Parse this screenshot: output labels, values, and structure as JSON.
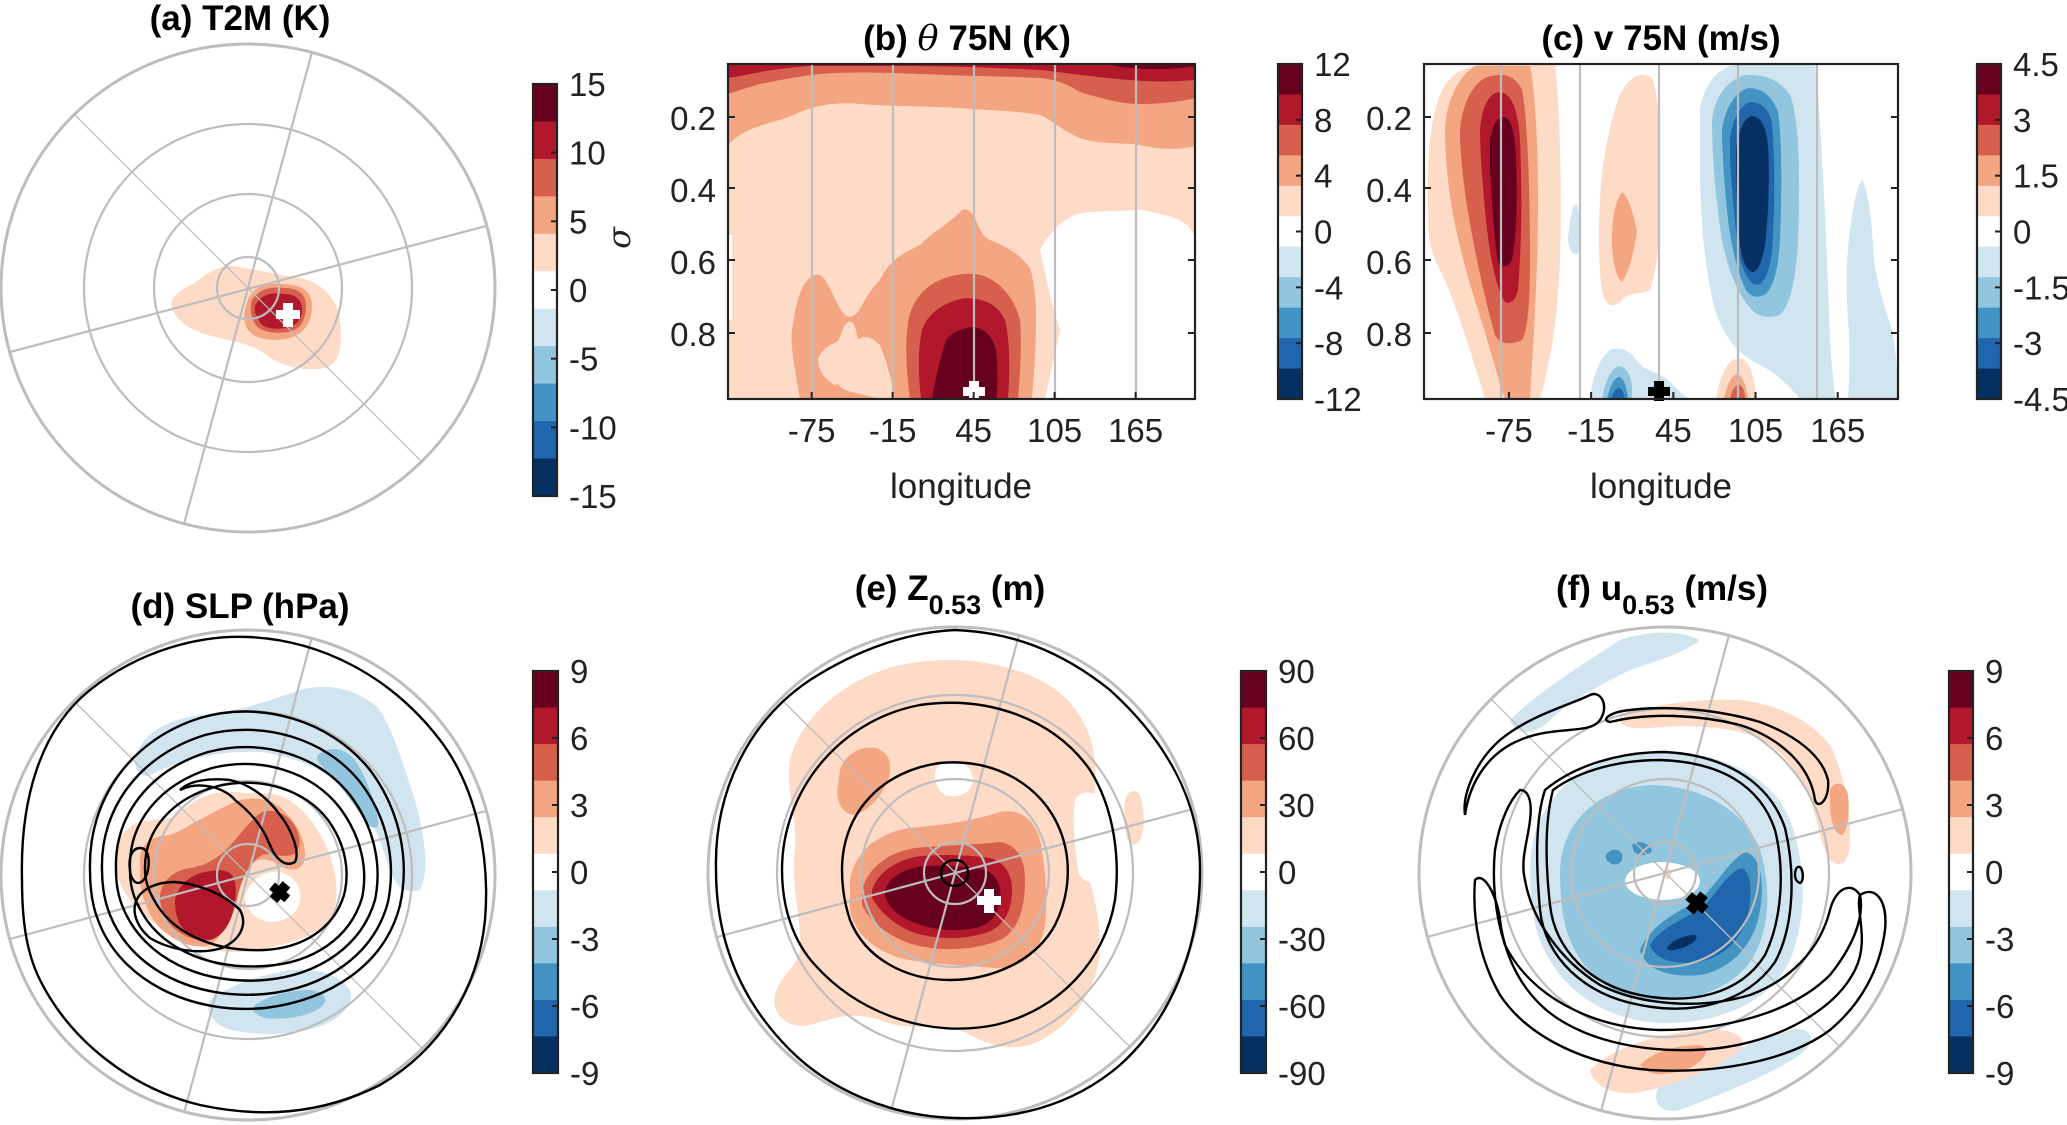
{
  "figure": {
    "colors": {
      "levels": [
        "#053061",
        "#2166ac",
        "#4393c3",
        "#92c5de",
        "#d1e5f0",
        "#ffffff",
        "#fddbc7",
        "#f4a582",
        "#d6604d",
        "#b2182b",
        "#67001f"
      ],
      "grid": "#bdbdbd",
      "contour": "#000000",
      "marker_white": "#ffffff",
      "marker_black": "#000000"
    }
  },
  "chart_data": [
    {
      "id": "a",
      "type": "heatmap",
      "projection": "polar-stereographic",
      "title": "(a) T2M (K)",
      "colorbar": {
        "min": -15,
        "max": 15,
        "levels": 11,
        "ticks": [
          "15",
          "10",
          "5",
          "0",
          "-5",
          "-10",
          "-15"
        ]
      },
      "marker": {
        "symbol": "plus",
        "color": "white",
        "position": "east-southeast of pole"
      },
      "features": [
        {
          "level": 1,
          "desc": "warm anomaly patch centred just SE of pole",
          "extent_r": 0.38
        },
        {
          "level": 2,
          "extent_r": 0.14
        },
        {
          "level": 3,
          "extent_r": 0.12
        },
        {
          "level": 4,
          "extent_r": 0.1
        }
      ],
      "contours": false
    },
    {
      "id": "b",
      "type": "heatmap",
      "title_prefix": "(b) ",
      "title_symbol": "θ",
      "title_suffix": " 75N (K)",
      "xlabel": "longitude",
      "ylabel": "σ",
      "xticks": [
        -75,
        -15,
        45,
        105,
        165
      ],
      "yticks": [
        0.2,
        0.4,
        0.6,
        0.8
      ],
      "xlim": [
        -137,
        209
      ],
      "ylim": [
        0.05,
        0.98
      ],
      "y_reversed": true,
      "grid": "vertical",
      "colorbar": {
        "min": -12,
        "max": 12,
        "levels": 11,
        "ticks": [
          "12",
          "8",
          "4",
          "0",
          "-4",
          "-8",
          "-12"
        ]
      },
      "marker": {
        "symbol": "plus",
        "color": "white",
        "lon": 45,
        "sigma": 0.95
      },
      "contours": false
    },
    {
      "id": "c",
      "type": "heatmap",
      "title": "(c) v 75N (m/s)",
      "xlabel": "longitude",
      "xticks": [
        -75,
        -15,
        45,
        105,
        165
      ],
      "xlim": [
        -137,
        209
      ],
      "ylim": [
        0.05,
        0.98
      ],
      "y_reversed": true,
      "grid": "vertical",
      "colorbar": {
        "min": -4.5,
        "max": 4.5,
        "levels": 11,
        "ticks": [
          "4.5",
          "3",
          "1.5",
          "0",
          "-1.5",
          "-3",
          "-4.5"
        ]
      },
      "marker": {
        "symbol": "plus",
        "color": "black",
        "lon": 45,
        "sigma": 0.95
      },
      "features": [
        {
          "sign": "positive",
          "lon_center": -78,
          "peak_level": 5,
          "sigma_range": [
            0.05,
            0.98
          ]
        },
        {
          "sign": "positive",
          "lon_center": 0,
          "peak_level": 2,
          "sigma_range": [
            0.05,
            0.75
          ]
        },
        {
          "sign": "negative",
          "lon_center": 97,
          "peak_level": 5,
          "sigma_range": [
            0.05,
            0.85
          ]
        },
        {
          "sign": "negative",
          "lon_center": 0,
          "peak_level": 4,
          "sigma_range": [
            0.85,
            0.98
          ]
        },
        {
          "sign": "positive",
          "lon_center": 85,
          "peak_level": 4,
          "sigma_range": [
            0.88,
            0.98
          ]
        },
        {
          "sign": "negative",
          "lon_center": 190,
          "peak_level": 1,
          "sigma_range": [
            0.4,
            0.98
          ]
        }
      ]
    },
    {
      "id": "d",
      "type": "heatmap",
      "projection": "polar-stereographic",
      "title": "(d) SLP (hPa)",
      "colorbar": {
        "min": -9,
        "max": 9,
        "levels": 11,
        "ticks": [
          "9",
          "6",
          "3",
          "0",
          "-3",
          "-6",
          "-9"
        ]
      },
      "marker": {
        "symbol": "plus",
        "color": "black"
      },
      "contours": true,
      "contour_count": 8
    },
    {
      "id": "e",
      "type": "heatmap",
      "projection": "polar-stereographic",
      "title_main": "(e) Z",
      "title_sub": "0.53",
      "title_unit": " (m)",
      "colorbar": {
        "min": -90,
        "max": 90,
        "levels": 11,
        "ticks": [
          "90",
          "60",
          "30",
          "0",
          "-30",
          "-60",
          "-90"
        ]
      },
      "marker": {
        "symbol": "plus",
        "color": "white"
      },
      "contours": true,
      "contour_count": 4
    },
    {
      "id": "f",
      "type": "heatmap",
      "projection": "polar-stereographic",
      "title_main": "(f) u",
      "title_sub": "0.53",
      "title_unit": " (m/s)",
      "colorbar": {
        "min": -9,
        "max": 9,
        "levels": 11,
        "ticks": [
          "9",
          "6",
          "3",
          "0",
          "-3",
          "-6",
          "-9"
        ]
      },
      "marker": {
        "symbol": "plus",
        "color": "black"
      },
      "contours": true,
      "contour_count": 5
    }
  ]
}
